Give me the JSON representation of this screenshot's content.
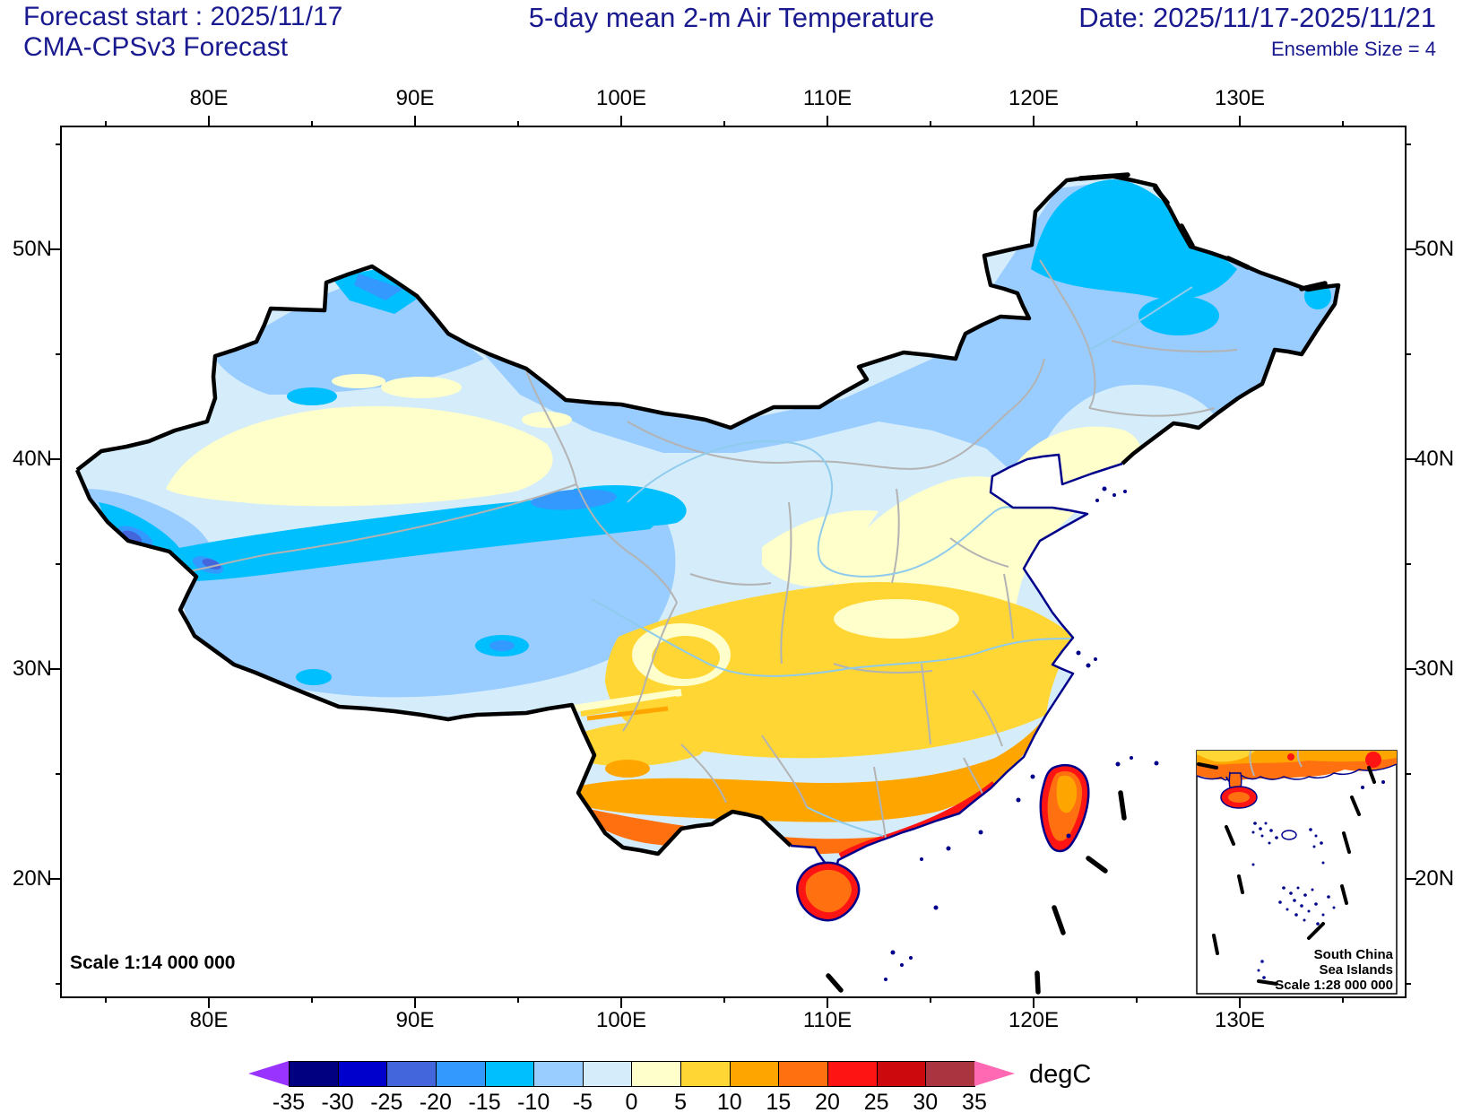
{
  "header": {
    "forecast_start": "Forecast start : 2025/11/17",
    "model": "CMA-CPSv3 Forecast",
    "title": "5-day mean 2-m Air Temperature",
    "date_range": "Date: 2025/11/17-2025/11/21",
    "ensemble": "Ensemble Size = 4"
  },
  "axes": {
    "lon": {
      "values": [
        80,
        90,
        100,
        110,
        120,
        130
      ],
      "labels": [
        "80E",
        "90E",
        "100E",
        "110E",
        "120E",
        "130E"
      ],
      "minor": [
        75,
        85,
        95,
        105,
        115,
        125,
        135
      ]
    },
    "lat": {
      "values": [
        50,
        40,
        30,
        20
      ],
      "labels": [
        "50N",
        "40N",
        "30N",
        "20N"
      ],
      "minor": [
        55,
        45,
        35,
        25,
        15
      ]
    }
  },
  "map": {
    "scale_label": "Scale 1:14 000 000",
    "inset": {
      "line1": "South China",
      "line2": "Sea Islands",
      "line3": "Scale 1:28 000 000"
    }
  },
  "colorbar": {
    "unit": "degC",
    "levels": [
      -35,
      -30,
      -25,
      -20,
      -15,
      -10,
      -5,
      0,
      5,
      10,
      15,
      20,
      25,
      30,
      35
    ],
    "colors": [
      "#000080",
      "#0000CC",
      "#4466DD",
      "#3399FF",
      "#00BFFF",
      "#99CCFF",
      "#D5EDFA",
      "#FFFFCC",
      "#FFD633",
      "#FFA500",
      "#FF7011",
      "#FF1414",
      "#CC0A0E",
      "#AA3540"
    ],
    "under_arrow": "#9933FF",
    "over_arrow": "#FF69B4"
  }
}
